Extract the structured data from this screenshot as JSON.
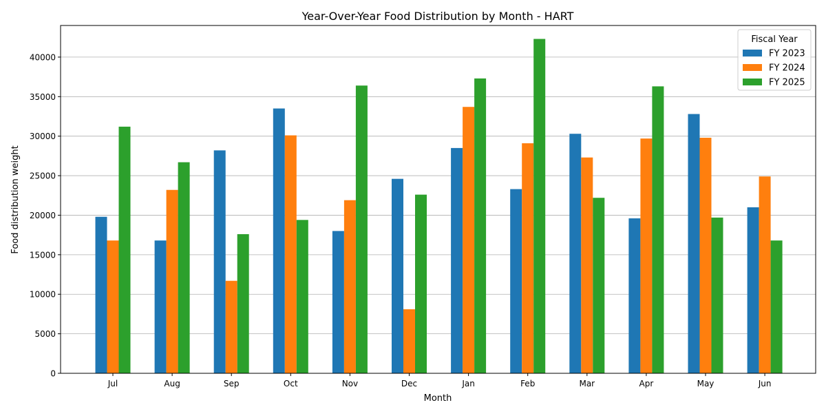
{
  "chart_data": {
    "type": "bar",
    "title": "Year-Over-Year Food Distribution by Month - HART",
    "xlabel": "Month",
    "ylabel": "Food distribution weight",
    "categories": [
      "Jul",
      "Aug",
      "Sep",
      "Oct",
      "Nov",
      "Dec",
      "Jan",
      "Feb",
      "Mar",
      "Apr",
      "May",
      "Jun"
    ],
    "series": [
      {
        "name": "FY 2023",
        "color": "#1f77b4",
        "values": [
          19800,
          16800,
          28200,
          33500,
          18000,
          24600,
          28500,
          23300,
          30300,
          19600,
          32800,
          21000
        ]
      },
      {
        "name": "FY 2024",
        "color": "#ff7f0e",
        "values": [
          16800,
          23200,
          11700,
          30100,
          21900,
          8100,
          33700,
          29100,
          27300,
          29700,
          29800,
          24900
        ]
      },
      {
        "name": "FY 2025",
        "color": "#2ca02c",
        "values": [
          31200,
          26700,
          17600,
          19400,
          36400,
          22600,
          37300,
          42300,
          22200,
          36300,
          19700,
          16800
        ]
      }
    ],
    "ylim": [
      0,
      44000
    ],
    "yticks": [
      0,
      5000,
      10000,
      15000,
      20000,
      25000,
      30000,
      35000,
      40000
    ],
    "grid": "y",
    "legend": {
      "title": "Fiscal Year",
      "placement": "top-right"
    }
  }
}
